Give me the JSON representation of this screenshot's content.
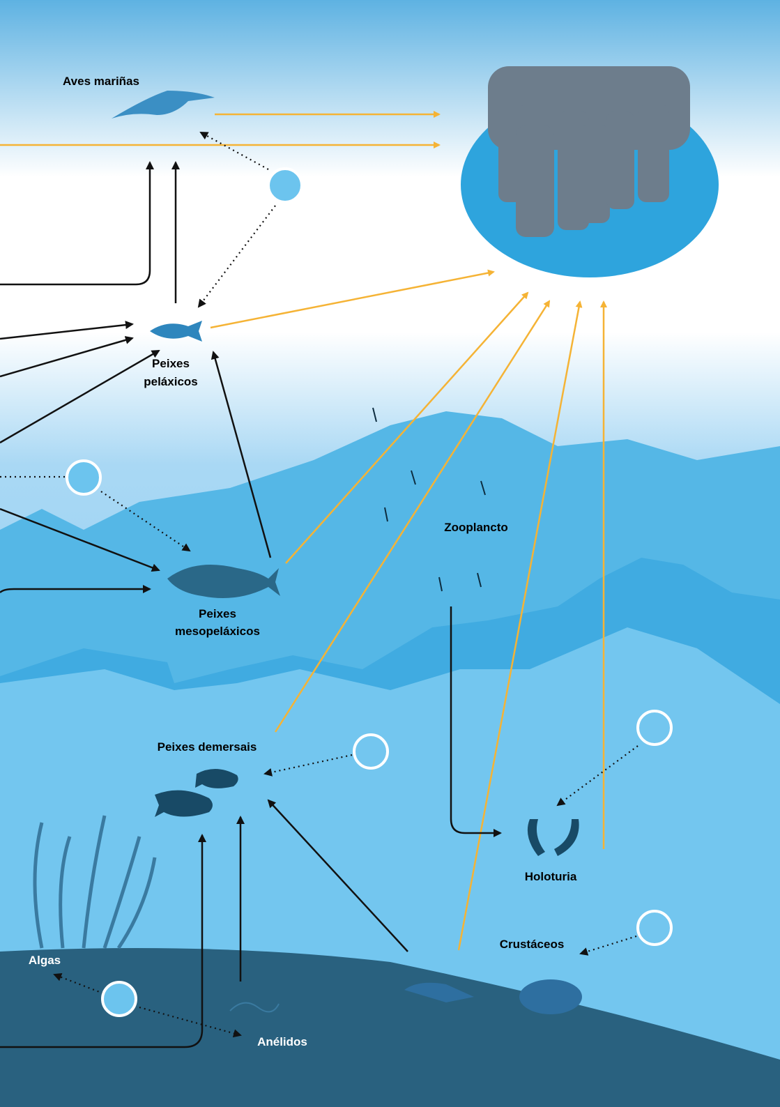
{
  "nodes": [
    {
      "label": [
        "Aves mariñas"
      ]
    },
    {
      "label": [
        "Peixes",
        "peláxicos"
      ]
    },
    {
      "label": [
        "Zooplancto"
      ]
    },
    {
      "label": [
        "Peixes",
        "mesopeláxicos"
      ]
    },
    {
      "label": [
        "Peixes demersais"
      ]
    },
    {
      "label": [
        "Holoturia"
      ]
    },
    {
      "label": [
        "Crustáceos"
      ]
    },
    {
      "label": [
        "Algas"
      ]
    },
    {
      "label": [
        "Anélidos"
      ]
    }
  ]
}
